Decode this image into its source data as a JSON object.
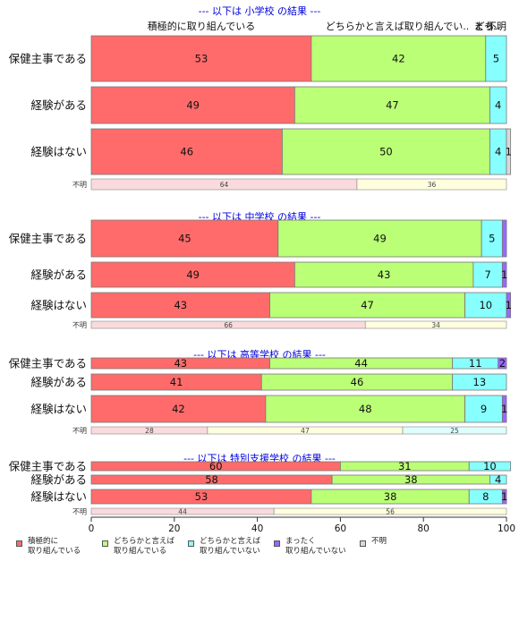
{
  "chart_data": {
    "type": "bar",
    "orientation": "horizontal",
    "stacked": true,
    "xlim": [
      0,
      100
    ],
    "x_ticks": [
      "0",
      "20",
      "40",
      "60",
      "80",
      "100"
    ],
    "column_headers": [
      "積極的に取り組んでいる",
      "どちらかと言えば取り組んでい..",
      "どち..",
      "まっ..",
      "不明"
    ],
    "colors": [
      "#FF6B6B",
      "#BBFF77",
      "#88FFFF",
      "#9966FF",
      "#D9D9D9"
    ],
    "series_names": [
      "積極的に\n取り組んでいる",
      "どちらかと言えば\n取り組んでいる",
      "どちらかと言えば\n取り組んでいない",
      "まったく\n取り組んでいない",
      "不明"
    ],
    "panels": [
      {
        "title": "--- 以下は 小学校 の結果 ---",
        "rows": [
          {
            "label": "保健主事である",
            "values": [
              53,
              42,
              5,
              0,
              0
            ],
            "value_labels": [
              "53",
              "42",
              "5",
              "",
              ""
            ]
          },
          {
            "label": "経験がある",
            "values": [
              49,
              47,
              4,
              0,
              0
            ],
            "value_labels": [
              "49",
              "47",
              "4",
              "",
              ""
            ]
          },
          {
            "label": "経験はない",
            "values": [
              46,
              50,
              4,
              0,
              1
            ],
            "value_labels": [
              "46",
              "50",
              "4",
              "",
              "1"
            ]
          }
        ],
        "unknown": {
          "label": "不明",
          "values": [
            64,
            36
          ],
          "value_labels": [
            "64",
            "36"
          ],
          "colors": [
            "#FADADD",
            "#FFFFDD"
          ]
        }
      },
      {
        "title": "--- 以下は 中学校 の結果 ---",
        "rows": [
          {
            "label": "保健主事である",
            "values": [
              45,
              49,
              5,
              1,
              0
            ],
            "value_labels": [
              "45",
              "49",
              "5",
              "",
              ""
            ]
          },
          {
            "label": "経験がある",
            "values": [
              49,
              43,
              7,
              1,
              0
            ],
            "value_labels": [
              "49",
              "43",
              "7",
              "1",
              ""
            ]
          },
          {
            "label": "経験はない",
            "values": [
              43,
              47,
              10,
              1,
              0
            ],
            "value_labels": [
              "43",
              "47",
              "10",
              "1",
              ""
            ]
          }
        ],
        "unknown": {
          "label": "不明",
          "values": [
            66,
            34
          ],
          "value_labels": [
            "66",
            "34"
          ],
          "colors": [
            "#FADADD",
            "#FFFFDD"
          ]
        }
      },
      {
        "title": "--- 以下は 高等学校 の結果 ---",
        "rows": [
          {
            "label": "保健主事である",
            "values": [
              43,
              44,
              11,
              2,
              0
            ],
            "value_labels": [
              "43",
              "44",
              "11",
              "2",
              ""
            ]
          },
          {
            "label": "経験がある",
            "values": [
              41,
              46,
              13,
              0,
              0
            ],
            "value_labels": [
              "41",
              "46",
              "13",
              "",
              ""
            ]
          },
          {
            "label": "経験はない",
            "values": [
              42,
              48,
              9,
              1,
              0
            ],
            "value_labels": [
              "42",
              "48",
              "9",
              "1",
              ""
            ]
          }
        ],
        "unknown": {
          "label": "不明",
          "values": [
            28,
            47,
            25
          ],
          "value_labels": [
            "28",
            "47",
            "25"
          ],
          "colors": [
            "#FADADD",
            "#FFFFDD",
            "#DDFFFF"
          ]
        }
      },
      {
        "title": "--- 以下は 特別支援学校 の結果 ---",
        "rows": [
          {
            "label": "保健主事である",
            "values": [
              60,
              31,
              10,
              0,
              0
            ],
            "value_labels": [
              "60",
              "31",
              "10",
              "",
              ""
            ]
          },
          {
            "label": "経験がある",
            "values": [
              58,
              38,
              4,
              0,
              0
            ],
            "value_labels": [
              "58",
              "38",
              "4",
              "",
              ""
            ]
          },
          {
            "label": "経験はない",
            "values": [
              53,
              38,
              8,
              1,
              0
            ],
            "value_labels": [
              "53",
              "38",
              "8",
              "1",
              ""
            ]
          }
        ],
        "unknown": {
          "label": "不明",
          "values": [
            44,
            56
          ],
          "value_labels": [
            "44",
            "56"
          ],
          "colors": [
            "#FADADD",
            "#FFFFDD"
          ]
        }
      }
    ]
  }
}
